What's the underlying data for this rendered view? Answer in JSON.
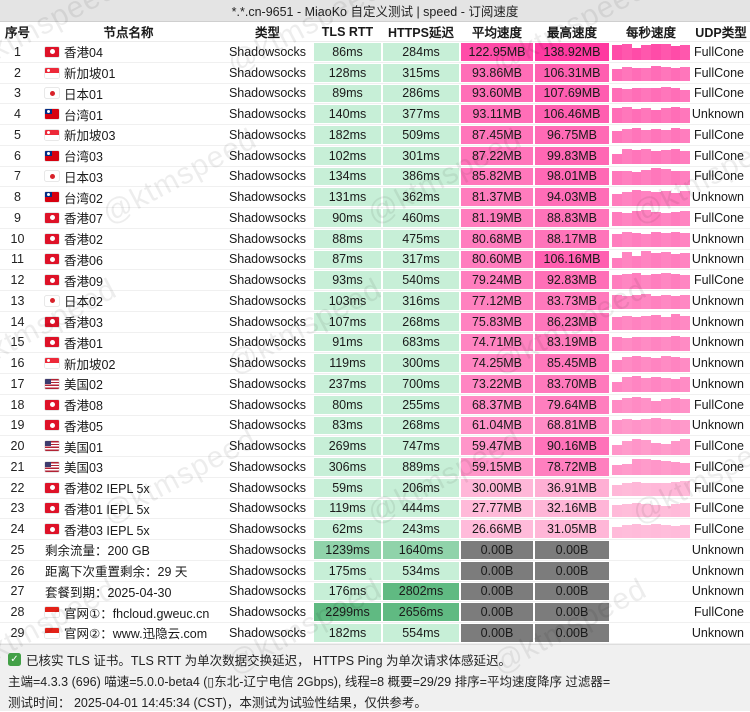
{
  "window": {
    "title": "*.*.cn-9651 - MiaoKo 自定义测试 | speed - 订阅速度"
  },
  "watermark": "@ktmspeed",
  "colors": {
    "green_light": "#c7efd7",
    "green_mid": "#90d3aa",
    "green_dark": "#60ba82",
    "gray_cell": "#7c7c7c",
    "pink_max": "#ff389f",
    "pink_min": "#ffc3dd",
    "check_green": "#43a047"
  },
  "table": {
    "columns": [
      "序号",
      "节点名称",
      "类型",
      "TLS RTT",
      "HTTPS延迟",
      "平均速度",
      "最高速度",
      "每秒速度",
      "UDP类型"
    ],
    "rows": [
      {
        "index": 1,
        "flag": "hk",
        "name": "香港04",
        "type": "Shadowsocks",
        "tls_rtt": "86ms",
        "tls_ms": 86,
        "https_delay": "284ms",
        "https_ms": 284,
        "avg_speed": "122.95MB",
        "avg_mb": 122.95,
        "max_speed": "138.92MB",
        "max_mb": 138.92,
        "udp": "FullCone",
        "bars": [
          0.9,
          0.95,
          0.75,
          0.9,
          1,
          0.95,
          0.85,
          0.92
        ]
      },
      {
        "index": 2,
        "flag": "sg",
        "name": "新加坡01",
        "type": "Shadowsocks",
        "tls_rtt": "128ms",
        "tls_ms": 128,
        "https_delay": "315ms",
        "https_ms": 315,
        "avg_speed": "93.86MB",
        "avg_mb": 93.86,
        "max_speed": "106.31MB",
        "max_mb": 106.31,
        "udp": "FullCone",
        "bars": [
          0.7,
          0.85,
          0.8,
          0.75,
          0.9,
          0.85,
          0.8,
          0.85
        ]
      },
      {
        "index": 3,
        "flag": "jp",
        "name": "日本01",
        "type": "Shadowsocks",
        "tls_rtt": "89ms",
        "tls_ms": 89,
        "https_delay": "286ms",
        "https_ms": 286,
        "avg_speed": "93.60MB",
        "avg_mb": 93.6,
        "max_speed": "107.69MB",
        "max_mb": 107.69,
        "udp": "FullCone",
        "bars": [
          0.8,
          0.75,
          0.85,
          0.8,
          0.85,
          0.9,
          0.8,
          0.7
        ]
      },
      {
        "index": 4,
        "flag": "tw",
        "name": "台湾01",
        "type": "Shadowsocks",
        "tls_rtt": "140ms",
        "tls_ms": 140,
        "https_delay": "377ms",
        "https_ms": 377,
        "avg_speed": "93.11MB",
        "avg_mb": 93.11,
        "max_speed": "106.46MB",
        "max_mb": 106.46,
        "udp": "Unknown",
        "bars": [
          0.85,
          0.9,
          0.8,
          0.85,
          0.75,
          0.85,
          0.9,
          0.85
        ]
      },
      {
        "index": 5,
        "flag": "sg",
        "name": "新加坡03",
        "type": "Shadowsocks",
        "tls_rtt": "182ms",
        "tls_ms": 182,
        "https_delay": "509ms",
        "https_ms": 509,
        "avg_speed": "87.45MB",
        "avg_mb": 87.45,
        "max_speed": "96.75MB",
        "max_mb": 96.75,
        "udp": "FullCone",
        "bars": [
          0.75,
          0.85,
          0.9,
          0.8,
          0.85,
          0.8,
          0.9,
          0.85
        ]
      },
      {
        "index": 6,
        "flag": "tw",
        "name": "台湾03",
        "type": "Shadowsocks",
        "tls_rtt": "102ms",
        "tls_ms": 102,
        "https_delay": "301ms",
        "https_ms": 301,
        "avg_speed": "87.22MB",
        "avg_mb": 87.22,
        "max_speed": "99.83MB",
        "max_mb": 99.83,
        "udp": "FullCone",
        "bars": [
          0.6,
          0.9,
          0.85,
          0.92,
          0.8,
          0.85,
          0.9,
          0.8
        ]
      },
      {
        "index": 7,
        "flag": "jp",
        "name": "日本03",
        "type": "Shadowsocks",
        "tls_rtt": "134ms",
        "tls_ms": 134,
        "https_delay": "386ms",
        "https_ms": 386,
        "avg_speed": "85.82MB",
        "avg_mb": 85.82,
        "max_speed": "98.01MB",
        "max_mb": 98.01,
        "udp": "FullCone",
        "bars": [
          0.8,
          0.85,
          0.75,
          0.9,
          1,
          0.95,
          0.85,
          0.8
        ]
      },
      {
        "index": 8,
        "flag": "tw",
        "name": "台湾02",
        "type": "Shadowsocks",
        "tls_rtt": "131ms",
        "tls_ms": 131,
        "https_delay": "362ms",
        "https_ms": 362,
        "avg_speed": "81.37MB",
        "avg_mb": 81.37,
        "max_speed": "94.03MB",
        "max_mb": 94.03,
        "udp": "Unknown",
        "bars": [
          0.7,
          0.8,
          0.9,
          0.85,
          0.8,
          0.85,
          0.75,
          0.85
        ]
      },
      {
        "index": 9,
        "flag": "hk",
        "name": "香港07",
        "type": "Shadowsocks",
        "tls_rtt": "90ms",
        "tls_ms": 90,
        "https_delay": "460ms",
        "https_ms": 460,
        "avg_speed": "81.19MB",
        "avg_mb": 81.19,
        "max_speed": "88.83MB",
        "max_mb": 88.83,
        "udp": "FullCone",
        "bars": [
          0.85,
          0.8,
          0.9,
          0.95,
          0.85,
          0.8,
          0.85,
          0.9
        ]
      },
      {
        "index": 10,
        "flag": "hk",
        "name": "香港02",
        "type": "Shadowsocks",
        "tls_rtt": "88ms",
        "tls_ms": 88,
        "https_delay": "475ms",
        "https_ms": 475,
        "avg_speed": "80.68MB",
        "avg_mb": 80.68,
        "max_speed": "88.17MB",
        "max_mb": 88.17,
        "udp": "Unknown",
        "bars": [
          0.8,
          0.9,
          0.85,
          0.8,
          0.9,
          0.85,
          0.9,
          0.85
        ]
      },
      {
        "index": 11,
        "flag": "hk",
        "name": "香港06",
        "type": "Shadowsocks",
        "tls_rtt": "87ms",
        "tls_ms": 87,
        "https_delay": "317ms",
        "https_ms": 317,
        "avg_speed": "80.60MB",
        "avg_mb": 80.6,
        "max_speed": "106.16MB",
        "max_mb": 106.16,
        "udp": "Unknown",
        "bars": [
          0.6,
          0.95,
          0.7,
          1,
          0.9,
          0.95,
          0.85,
          0.9
        ]
      },
      {
        "index": 12,
        "flag": "hk",
        "name": "香港09",
        "type": "Shadowsocks",
        "tls_rtt": "93ms",
        "tls_ms": 93,
        "https_delay": "540ms",
        "https_ms": 540,
        "avg_speed": "79.24MB",
        "avg_mb": 79.24,
        "max_speed": "92.83MB",
        "max_mb": 92.83,
        "udp": "FullCone",
        "bars": [
          0.8,
          0.85,
          0.9,
          0.8,
          0.85,
          0.9,
          0.85,
          0.8
        ]
      },
      {
        "index": 13,
        "flag": "jp",
        "name": "日本02",
        "type": "Shadowsocks",
        "tls_rtt": "103ms",
        "tls_ms": 103,
        "https_delay": "316ms",
        "https_ms": 316,
        "avg_speed": "77.12MB",
        "avg_mb": 77.12,
        "max_speed": "83.73MB",
        "max_mb": 83.73,
        "udp": "Unknown",
        "bars": [
          0.85,
          0.8,
          0.85,
          0.9,
          0.8,
          0.85,
          0.8,
          0.85
        ]
      },
      {
        "index": 14,
        "flag": "hk",
        "name": "香港03",
        "type": "Shadowsocks",
        "tls_rtt": "107ms",
        "tls_ms": 107,
        "https_delay": "268ms",
        "https_ms": 268,
        "avg_speed": "75.83MB",
        "avg_mb": 75.83,
        "max_speed": "86.23MB",
        "max_mb": 86.23,
        "udp": "Unknown",
        "bars": [
          0.75,
          0.85,
          0.8,
          0.85,
          0.9,
          0.8,
          0.95,
          0.85
        ]
      },
      {
        "index": 15,
        "flag": "hk",
        "name": "香港01",
        "type": "Shadowsocks",
        "tls_rtt": "91ms",
        "tls_ms": 91,
        "https_delay": "683ms",
        "https_ms": 683,
        "avg_speed": "74.71MB",
        "avg_mb": 74.71,
        "max_speed": "83.19MB",
        "max_mb": 83.19,
        "udp": "Unknown",
        "bars": [
          0.8,
          0.75,
          0.85,
          0.8,
          0.85,
          0.8,
          0.9,
          0.85
        ]
      },
      {
        "index": 16,
        "flag": "sg",
        "name": "新加坡02",
        "type": "Shadowsocks",
        "tls_rtt": "119ms",
        "tls_ms": 119,
        "https_delay": "300ms",
        "https_ms": 300,
        "avg_speed": "74.25MB",
        "avg_mb": 74.25,
        "max_speed": "85.45MB",
        "max_mb": 85.45,
        "udp": "Unknown",
        "bars": [
          0.7,
          0.85,
          0.9,
          0.85,
          0.8,
          0.9,
          0.85,
          0.8
        ]
      },
      {
        "index": 17,
        "flag": "us",
        "name": "美国02",
        "type": "Shadowsocks",
        "tls_rtt": "237ms",
        "tls_ms": 237,
        "https_delay": "700ms",
        "https_ms": 700,
        "avg_speed": "73.22MB",
        "avg_mb": 73.22,
        "max_speed": "83.70MB",
        "max_mb": 83.7,
        "udp": "Unknown",
        "bars": [
          0.6,
          0.9,
          0.95,
          0.85,
          0.9,
          0.85,
          0.8,
          0.9
        ]
      },
      {
        "index": 18,
        "flag": "hk",
        "name": "香港08",
        "type": "Shadowsocks",
        "tls_rtt": "80ms",
        "tls_ms": 80,
        "https_delay": "255ms",
        "https_ms": 255,
        "avg_speed": "68.37MB",
        "avg_mb": 68.37,
        "max_speed": "79.64MB",
        "max_mb": 79.64,
        "udp": "FullCone",
        "bars": [
          0.75,
          0.9,
          0.95,
          0.9,
          0.7,
          0.85,
          0.9,
          0.85
        ]
      },
      {
        "index": 19,
        "flag": "hk",
        "name": "香港05",
        "type": "Shadowsocks",
        "tls_rtt": "83ms",
        "tls_ms": 83,
        "https_delay": "268ms",
        "https_ms": 268,
        "avg_speed": "61.04MB",
        "avg_mb": 61.04,
        "max_speed": "68.81MB",
        "max_mb": 68.81,
        "udp": "Unknown",
        "bars": [
          0.8,
          0.9,
          0.85,
          0.9,
          0.95,
          0.9,
          0.85,
          0.8
        ]
      },
      {
        "index": 20,
        "flag": "us",
        "name": "美国01",
        "type": "Shadowsocks",
        "tls_rtt": "269ms",
        "tls_ms": 269,
        "https_delay": "747ms",
        "https_ms": 747,
        "avg_speed": "59.47MB",
        "avg_mb": 59.47,
        "max_speed": "90.16MB",
        "max_mb": 90.16,
        "udp": "FullCone",
        "bars": [
          0.55,
          0.8,
          0.9,
          0.85,
          0.7,
          0.65,
          0.8,
          0.95
        ]
      },
      {
        "index": 21,
        "flag": "us",
        "name": "美国03",
        "type": "Shadowsocks",
        "tls_rtt": "306ms",
        "tls_ms": 306,
        "https_delay": "889ms",
        "https_ms": 889,
        "avg_speed": "59.15MB",
        "avg_mb": 59.15,
        "max_speed": "78.72MB",
        "max_mb": 78.72,
        "udp": "FullCone",
        "bars": [
          0.6,
          0.7,
          0.95,
          1,
          0.9,
          0.85,
          0.8,
          0.75
        ]
      },
      {
        "index": 22,
        "flag": "hk",
        "name": "香港02 IEPL 5x",
        "type": "Shadowsocks",
        "tls_rtt": "59ms",
        "tls_ms": 59,
        "https_delay": "206ms",
        "https_ms": 206,
        "avg_speed": "30.00MB",
        "avg_mb": 30.0,
        "max_speed": "36.91MB",
        "max_mb": 36.91,
        "udp": "FullCone",
        "bars": [
          0.65,
          0.8,
          0.85,
          0.8,
          0.75,
          0.8,
          0.85,
          0.9
        ]
      },
      {
        "index": 23,
        "flag": "hk",
        "name": "香港01 IEPL 5x",
        "type": "Shadowsocks",
        "tls_rtt": "119ms",
        "tls_ms": 119,
        "https_delay": "444ms",
        "https_ms": 444,
        "avg_speed": "27.77MB",
        "avg_mb": 27.77,
        "max_speed": "32.16MB",
        "max_mb": 32.16,
        "udp": "FullCone",
        "bars": [
          0.7,
          0.75,
          0.8,
          0.75,
          0.7,
          0.65,
          0.75,
          0.8
        ]
      },
      {
        "index": 24,
        "flag": "hk",
        "name": "香港03 IEPL 5x",
        "type": "Shadowsocks",
        "tls_rtt": "62ms",
        "tls_ms": 62,
        "https_delay": "243ms",
        "https_ms": 243,
        "avg_speed": "26.66MB",
        "avg_mb": 26.66,
        "max_speed": "31.05MB",
        "max_mb": 31.05,
        "udp": "FullCone",
        "bars": [
          0.6,
          0.75,
          0.8,
          0.75,
          0.8,
          0.75,
          0.7,
          0.75
        ]
      },
      {
        "index": 25,
        "flag": "",
        "name": "剩余流量：200 GB",
        "type": "Shadowsocks",
        "tls_rtt": "1239ms",
        "tls_ms": 1239,
        "https_delay": "1640ms",
        "https_ms": 1640,
        "avg_speed": "0.00B",
        "avg_mb": 0,
        "max_speed": "0.00B",
        "max_mb": 0,
        "udp": "Unknown",
        "bars": []
      },
      {
        "index": 26,
        "flag": "",
        "name": "距离下次重置剩余：29 天",
        "type": "Shadowsocks",
        "tls_rtt": "175ms",
        "tls_ms": 175,
        "https_delay": "534ms",
        "https_ms": 534,
        "avg_speed": "0.00B",
        "avg_mb": 0,
        "max_speed": "0.00B",
        "max_mb": 0,
        "udp": "Unknown",
        "bars": []
      },
      {
        "index": 27,
        "flag": "",
        "name": "套餐到期：2025-04-30",
        "type": "Shadowsocks",
        "tls_rtt": "176ms",
        "tls_ms": 176,
        "https_delay": "2802ms",
        "https_ms": 2802,
        "avg_speed": "0.00B",
        "avg_mb": 0,
        "max_speed": "0.00B",
        "max_mb": 0,
        "udp": "Unknown",
        "bars": []
      },
      {
        "index": 28,
        "flag": "id",
        "name": "官网①：fhcloud.gweuc.cn",
        "type": "Shadowsocks",
        "tls_rtt": "2299ms",
        "tls_ms": 2299,
        "https_delay": "2656ms",
        "https_ms": 2656,
        "avg_speed": "0.00B",
        "avg_mb": 0,
        "max_speed": "0.00B",
        "max_mb": 0,
        "udp": "FullCone",
        "bars": []
      },
      {
        "index": 29,
        "flag": "id",
        "name": "官网②：www.迅隐云.com",
        "type": "Shadowsocks",
        "tls_rtt": "182ms",
        "tls_ms": 182,
        "https_delay": "554ms",
        "https_ms": 554,
        "avg_speed": "0.00B",
        "avg_mb": 0,
        "max_speed": "0.00B",
        "max_mb": 0,
        "udp": "Unknown",
        "bars": []
      }
    ]
  },
  "footer": {
    "line1": "已核实 TLS 证书。TLS RTT 为单次数据交换延迟， HTTPS Ping 为单次请求体感延迟。",
    "line2": "主端=4.3.3 (696) 喵速=5.0.0-beta4 (▯东北-辽宁电信 2Gbps), 线程=8 概要=29/29 排序=平均速度降序 过滤器=",
    "line3": "测试时间： 2025-04-01 14:45:34 (CST)，本测试为试验性结果，仅供参考。"
  }
}
